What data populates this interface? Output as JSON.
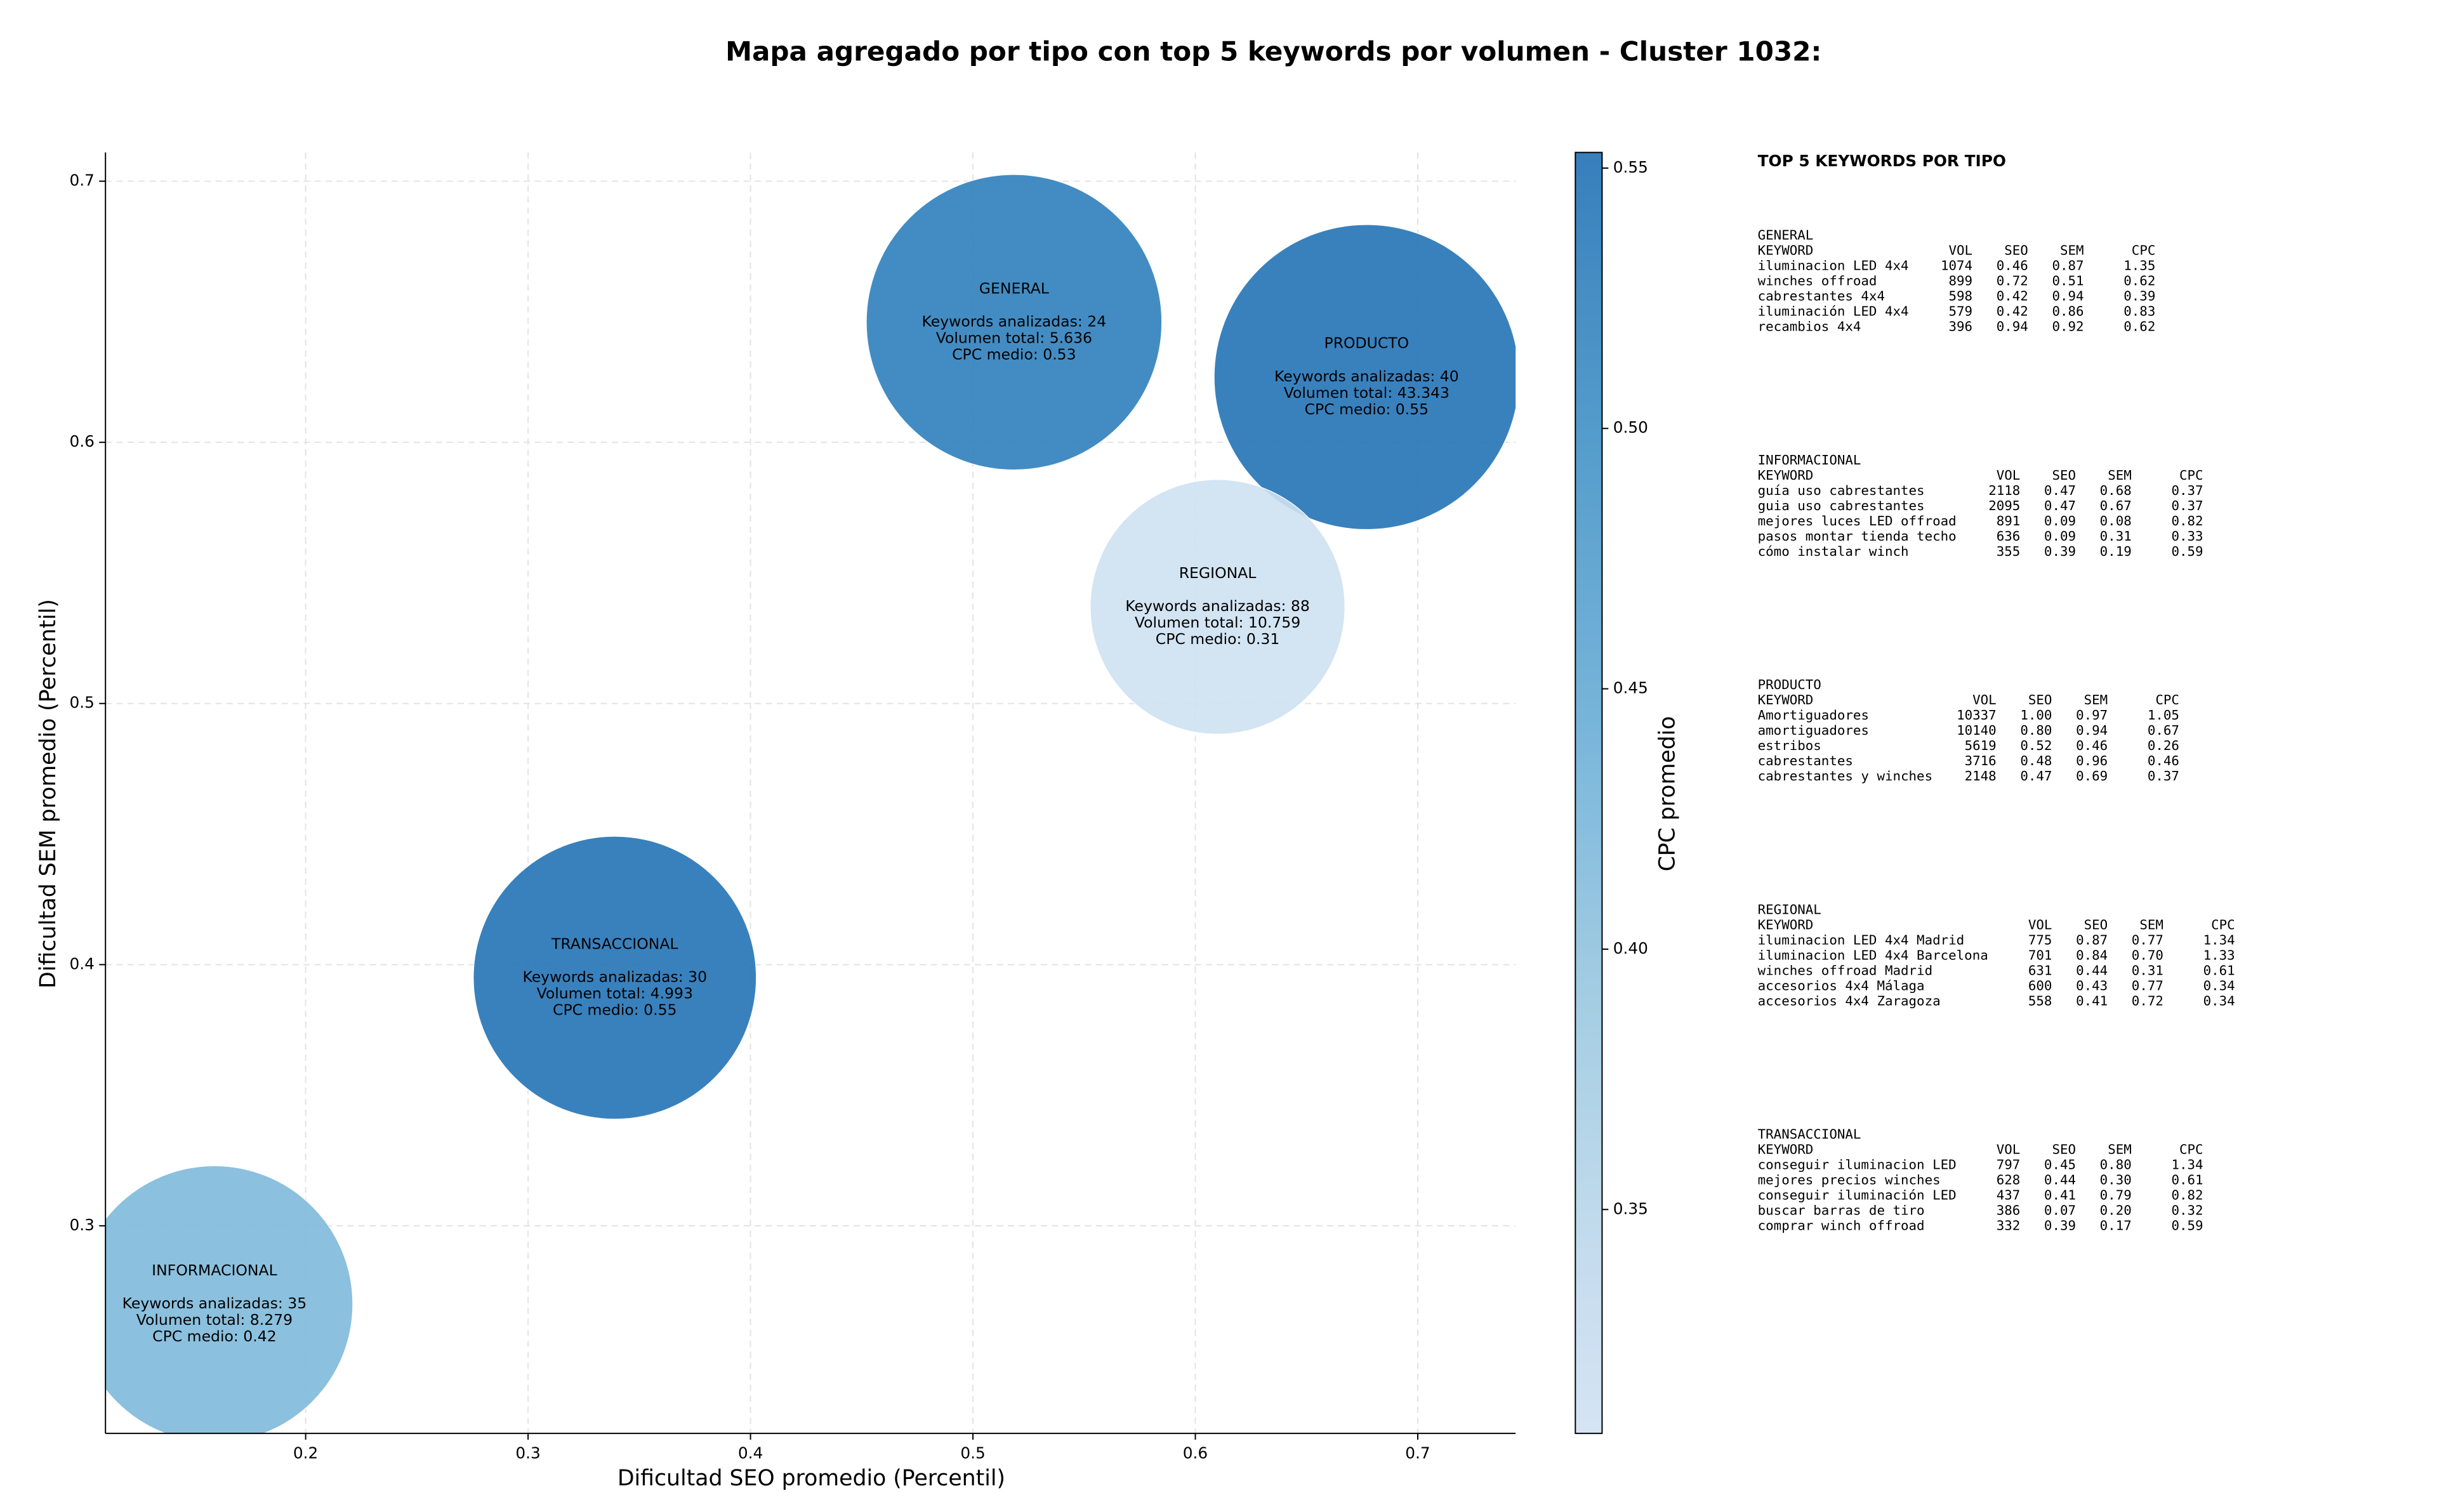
{
  "chart_data": {
    "type": "bubble",
    "title": "Mapa agregado por tipo con top 5 keywords por volumen - Cluster 1032:",
    "x_label": "Dificultad SEO promedio (Percentil)",
    "y_label": "Dificultad SEM promedio (Percentil)",
    "colorbar_label": "CPC promedio",
    "colormap": "Blues",
    "x": [
      0.5185,
      0.677,
      0.61,
      0.339,
      0.159
    ],
    "y": [
      0.646,
      0.625,
      0.537,
      0.395,
      0.27
    ],
    "color_values": [
      0.53,
      0.55,
      0.31,
      0.55,
      0.42
    ],
    "labels": [
      [
        "GENERAL",
        "Keywords analizadas: 24",
        "Volumen total: 5.636",
        "CPC medio: 0.53"
      ],
      [
        "PRODUCTO",
        "Keywords analizadas: 40",
        "Volumen total: 43.343",
        "CPC medio: 0.55"
      ],
      [
        "REGIONAL",
        "Keywords analizadas: 88",
        "Volumen total: 10.759",
        "CPC medio: 0.31"
      ],
      [
        "TRANSACCIONAL",
        "Keywords analizadas: 30",
        "Volumen total: 4.993",
        "CPC medio: 0.55"
      ],
      [
        "INFORMACIONAL",
        "Keywords analizadas: 35",
        "Volumen total: 8.279",
        "CPC medio: 0.42"
      ]
    ],
    "xlim": [
      0.11,
      0.744
    ],
    "ylim": [
      0.2205,
      0.711
    ],
    "xticks": [
      0.2,
      0.3,
      0.4,
      0.5,
      0.6,
      0.7
    ],
    "yticks": [
      0.3,
      0.4,
      0.5,
      0.6,
      0.7
    ],
    "clim": [
      0.307,
      0.553
    ],
    "cticks": [
      0.35,
      {
        "value": 0.4,
        "label": "0.40"
      },
      0.45,
      {
        "value": 0.5,
        "label": "0.50"
      },
      0.55
    ],
    "grid": true
  },
  "side_panel": {
    "title": "TOP 5 KEYWORDS POR TIPO",
    "columns": [
      "KEYWORD",
      "VOL",
      "SEO",
      "SEM",
      "CPC"
    ],
    "groups": [
      {
        "name": "GENERAL",
        "rows": [
          [
            "iluminacion LED 4x4",
            "1074",
            "0.46",
            "0.87",
            "1.35"
          ],
          [
            "winches offroad",
            "899",
            "0.72",
            "0.51",
            "0.62"
          ],
          [
            "cabrestantes 4x4",
            "598",
            "0.42",
            "0.94",
            "0.39"
          ],
          [
            "iluminación LED 4x4",
            "579",
            "0.42",
            "0.86",
            "0.83"
          ],
          [
            "recambios 4x4",
            "396",
            "0.94",
            "0.92",
            "0.62"
          ]
        ]
      },
      {
        "name": "INFORMACIONAL",
        "rows": [
          [
            "guía uso cabrestantes",
            "2118",
            "0.47",
            "0.68",
            "0.37"
          ],
          [
            "guia uso cabrestantes",
            "2095",
            "0.47",
            "0.67",
            "0.37"
          ],
          [
            "mejores luces LED offroad",
            "891",
            "0.09",
            "0.08",
            "0.82"
          ],
          [
            "pasos montar tienda techo",
            "636",
            "0.09",
            "0.31",
            "0.33"
          ],
          [
            "cómo instalar winch",
            "355",
            "0.39",
            "0.19",
            "0.59"
          ]
        ]
      },
      {
        "name": "PRODUCTO",
        "rows": [
          [
            "Amortiguadores",
            "10337",
            "1.00",
            "0.97",
            "1.05"
          ],
          [
            "amortiguadores",
            "10140",
            "0.80",
            "0.94",
            "0.67"
          ],
          [
            "estribos",
            "5619",
            "0.52",
            "0.46",
            "0.26"
          ],
          [
            "cabrestantes",
            "3716",
            "0.48",
            "0.96",
            "0.46"
          ],
          [
            "cabrestantes y winches",
            "2148",
            "0.47",
            "0.69",
            "0.37"
          ]
        ]
      },
      {
        "name": "REGIONAL",
        "rows": [
          [
            "iluminacion LED 4x4 Madrid",
            "775",
            "0.87",
            "0.77",
            "1.34"
          ],
          [
            "iluminacion LED 4x4 Barcelona",
            "701",
            "0.84",
            "0.70",
            "1.33"
          ],
          [
            "winches offroad Madrid",
            "631",
            "0.44",
            "0.31",
            "0.61"
          ],
          [
            "accesorios 4x4 Málaga",
            "600",
            "0.43",
            "0.77",
            "0.34"
          ],
          [
            "accesorios 4x4 Zaragoza",
            "558",
            "0.41",
            "0.72",
            "0.34"
          ]
        ]
      },
      {
        "name": "TRANSACCIONAL",
        "rows": [
          [
            "conseguir iluminacion LED",
            "797",
            "0.45",
            "0.80",
            "1.34"
          ],
          [
            "mejores precios winches",
            "628",
            "0.44",
            "0.30",
            "0.61"
          ],
          [
            "conseguir iluminación LED",
            "437",
            "0.41",
            "0.79",
            "0.82"
          ],
          [
            "buscar barras de tiro",
            "386",
            "0.07",
            "0.20",
            "0.32"
          ],
          [
            "comprar winch offroad",
            "332",
            "0.39",
            "0.17",
            "0.59"
          ]
        ]
      }
    ]
  }
}
